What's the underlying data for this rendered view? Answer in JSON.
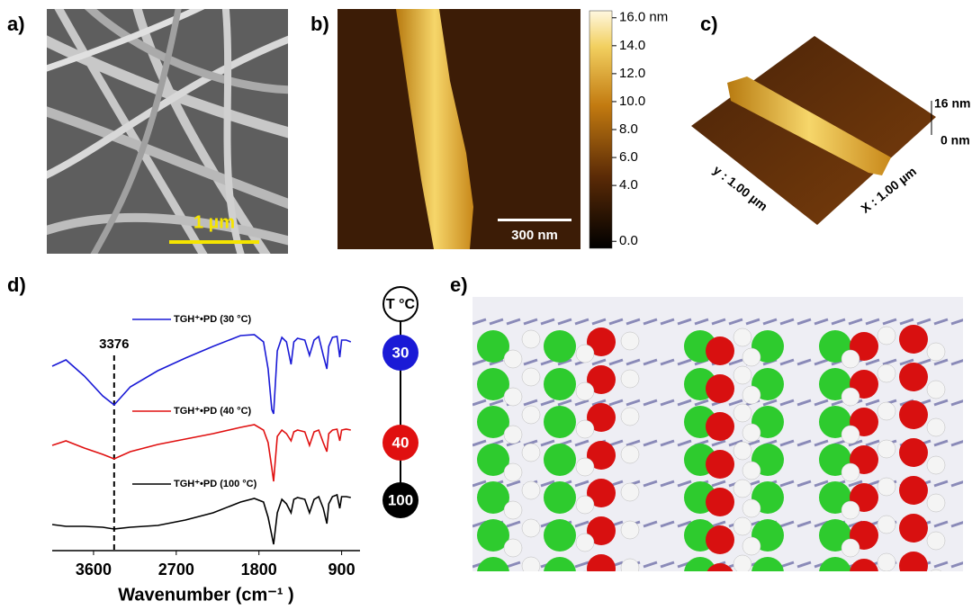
{
  "figure": {
    "panel_labels": [
      "a)",
      "b)",
      "c)",
      "d)",
      "e)"
    ],
    "panel_a": {
      "scale_bar": "1 µm"
    },
    "panel_b": {
      "scale_bar": "300 nm",
      "colorbar": {
        "clim": [
          -0.5,
          16.5
        ],
        "ticks": [
          {
            "value": 16,
            "label": "16.0 nm"
          },
          {
            "value": 14,
            "label": "14.0"
          },
          {
            "value": 12,
            "label": "12.0"
          },
          {
            "value": 10,
            "label": "10.0"
          },
          {
            "value": 8,
            "label": "8.0"
          },
          {
            "value": 6,
            "label": "6.0"
          },
          {
            "value": 4,
            "label": "4.0"
          },
          {
            "value": 0,
            "label": "0.0"
          }
        ]
      }
    },
    "panel_c": {
      "z_labels": [
        "16 nm",
        "0 nm"
      ],
      "y_label": "y : 1.00 µm",
      "x_label": "X : 1.00 µm"
    },
    "panel_d_temperatures": {
      "header": "T °C",
      "labels": [
        "30",
        "40",
        "100"
      ]
    }
  },
  "chart_data": {
    "type": "line",
    "x_label": "Wavenumber (cm⁻¹ )",
    "annotation": {
      "x": 3376
    },
    "xlim": [
      4050,
      700
    ],
    "xticks": [
      3600,
      2700,
      1800,
      900
    ],
    "ylim": [
      8,
      320
    ],
    "x": [
      4050,
      3900,
      3700,
      3500,
      3376,
      3200,
      2900,
      2600,
      2300,
      2000,
      1850,
      1750,
      1700,
      1660,
      1640,
      1600,
      1550,
      1500,
      1450,
      1420,
      1380,
      1300,
      1250,
      1200,
      1150,
      1100,
      1060,
      1040,
      1000,
      950,
      920,
      900,
      850,
      800
    ],
    "series": [
      {
        "name": "TGH⁺•PD (30 °C)",
        "color": "#1a1ad6",
        "values": [
          213,
          220,
          202,
          180,
          170,
          190,
          208,
          222,
          235,
          247,
          248,
          240,
          210,
          165,
          160,
          230,
          245,
          240,
          215,
          240,
          244,
          242,
          225,
          242,
          246,
          225,
          210,
          235,
          245,
          246,
          223,
          242,
          242,
          240
        ]
      },
      {
        "name": "TGH⁺•PD (40 °C)",
        "color": "#e01010",
        "values": [
          125,
          130,
          122,
          115,
          110,
          118,
          126,
          132,
          138,
          145,
          148,
          142,
          128,
          100,
          85,
          135,
          142,
          138,
          130,
          140,
          142,
          140,
          125,
          140,
          142,
          128,
          118,
          138,
          142,
          143,
          130,
          142,
          143,
          142
        ]
      },
      {
        "name": "TGH⁺•PD (100 °C)",
        "color": "#000000",
        "values": [
          37,
          35,
          35,
          34,
          32,
          34,
          36,
          42,
          50,
          62,
          66,
          62,
          45,
          25,
          15,
          50,
          65,
          60,
          50,
          65,
          67,
          65,
          50,
          65,
          68,
          55,
          38,
          60,
          68,
          70,
          55,
          68,
          68,
          67
        ]
      }
    ]
  }
}
